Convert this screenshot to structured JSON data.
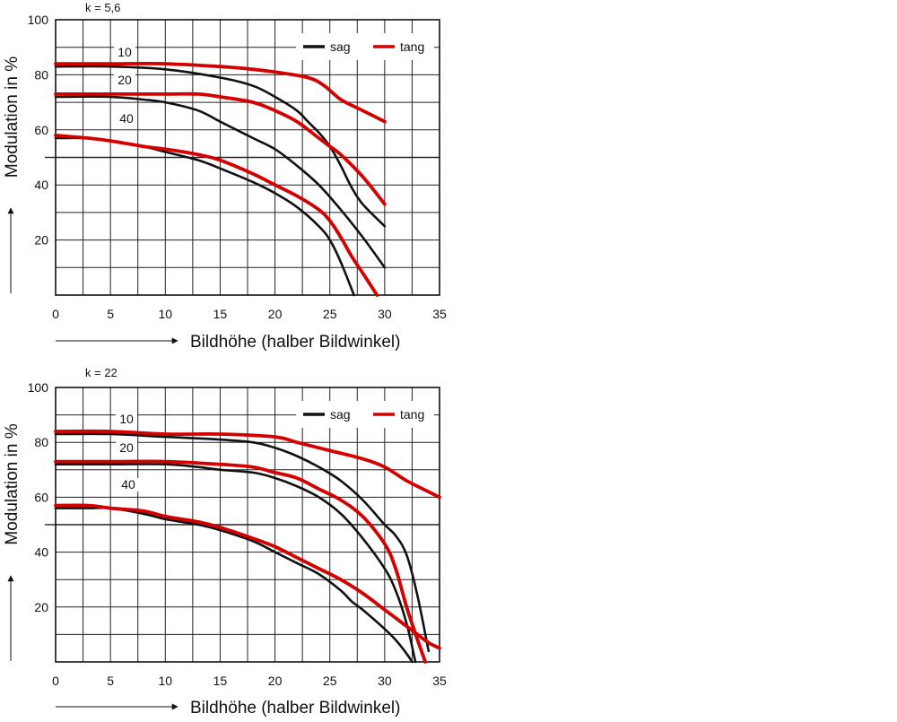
{
  "chart_data": [
    {
      "type": "line",
      "title": "k = 5,6",
      "xlabel": "Bildhöhe (halber Bildwinkel)",
      "ylabel": "Modulation in %",
      "xlim": [
        0,
        35
      ],
      "ylim": [
        0,
        100
      ],
      "x_ticks": [
        0,
        5,
        10,
        15,
        20,
        25,
        30,
        35
      ],
      "y_ticks": [
        20,
        40,
        60,
        80,
        100
      ],
      "grid": true,
      "legend_position": "top-right",
      "legend": [
        {
          "label": "sag",
          "color": "#111111"
        },
        {
          "label": "tang",
          "color": "#d40000"
        }
      ],
      "curve_labels": [
        "10",
        "20",
        "40"
      ],
      "series": [
        {
          "label": "10",
          "kind": "sag",
          "color": "#111111",
          "points": [
            [
              0,
              83
            ],
            [
              5,
              83
            ],
            [
              10,
              82
            ],
            [
              15,
              79
            ],
            [
              18,
              76
            ],
            [
              20,
              72
            ],
            [
              22,
              67
            ],
            [
              23,
              63
            ],
            [
              24,
              59
            ],
            [
              25,
              54
            ],
            [
              26,
              47
            ],
            [
              27,
              39
            ],
            [
              28,
              33
            ],
            [
              30,
              25
            ]
          ]
        },
        {
          "label": "10",
          "kind": "tang",
          "color": "#d40000",
          "points": [
            [
              0,
              84
            ],
            [
              5,
              84
            ],
            [
              10,
              84
            ],
            [
              15,
              83
            ],
            [
              18,
              82
            ],
            [
              20,
              81
            ],
            [
              23,
              79
            ],
            [
              24.5,
              76
            ],
            [
              26,
              71
            ],
            [
              28,
              67
            ],
            [
              30,
              63
            ]
          ]
        },
        {
          "label": "20",
          "kind": "sag",
          "color": "#111111",
          "points": [
            [
              0,
              72
            ],
            [
              5,
              72
            ],
            [
              8,
              71
            ],
            [
              10,
              70
            ],
            [
              13,
              67
            ],
            [
              15,
              63
            ],
            [
              18,
              57
            ],
            [
              20,
              53
            ],
            [
              22,
              47
            ],
            [
              24,
              40
            ],
            [
              26,
              31
            ],
            [
              28,
              21
            ],
            [
              30,
              10
            ]
          ]
        },
        {
          "label": "20",
          "kind": "tang",
          "color": "#d40000",
          "points": [
            [
              0,
              73
            ],
            [
              5,
              73
            ],
            [
              10,
              73
            ],
            [
              13,
              73
            ],
            [
              15,
              72
            ],
            [
              18,
              70
            ],
            [
              20,
              67
            ],
            [
              22,
              63
            ],
            [
              24,
              57
            ],
            [
              25,
              54
            ],
            [
              26,
              51
            ],
            [
              28,
              43
            ],
            [
              30,
              33
            ]
          ]
        },
        {
          "label": "40",
          "kind": "sag",
          "color": "#111111",
          "points": [
            [
              0,
              57
            ],
            [
              3,
              57
            ],
            [
              5,
              56
            ],
            [
              8,
              54
            ],
            [
              10,
              52
            ],
            [
              13,
              49
            ],
            [
              15,
              46
            ],
            [
              18,
              41
            ],
            [
              20,
              37
            ],
            [
              22,
              32
            ],
            [
              24,
              25
            ],
            [
              25,
              20
            ],
            [
              26,
              12
            ],
            [
              27.2,
              0
            ]
          ]
        },
        {
          "label": "40",
          "kind": "tang",
          "color": "#d40000",
          "points": [
            [
              0,
              58
            ],
            [
              3,
              57
            ],
            [
              5,
              56
            ],
            [
              8,
              54
            ],
            [
              10,
              53
            ],
            [
              13,
              51
            ],
            [
              15,
              49
            ],
            [
              18,
              44
            ],
            [
              20,
              40
            ],
            [
              22,
              36
            ],
            [
              24,
              31
            ],
            [
              25,
              27
            ],
            [
              26,
              21
            ],
            [
              27,
              14
            ],
            [
              28,
              8
            ],
            [
              29.3,
              0
            ]
          ]
        }
      ]
    },
    {
      "type": "line",
      "title": "k = 22",
      "xlabel": "Bildhöhe (halber Bildwinkel)",
      "ylabel": "Modulation in %",
      "xlim": [
        0,
        35
      ],
      "ylim": [
        0,
        100
      ],
      "x_ticks": [
        0,
        5,
        10,
        15,
        20,
        25,
        30,
        35
      ],
      "y_ticks": [
        20,
        40,
        60,
        80,
        100
      ],
      "grid": true,
      "legend_position": "top-right",
      "legend": [
        {
          "label": "sag",
          "color": "#111111"
        },
        {
          "label": "tang",
          "color": "#d40000"
        }
      ],
      "curve_labels": [
        "10",
        "20",
        "40"
      ],
      "series": [
        {
          "label": "10",
          "kind": "sag",
          "color": "#111111",
          "points": [
            [
              0,
              83
            ],
            [
              5,
              83
            ],
            [
              10,
              82
            ],
            [
              15,
              81
            ],
            [
              18,
              80
            ],
            [
              20,
              78
            ],
            [
              22,
              75
            ],
            [
              24,
              71
            ],
            [
              26,
              66
            ],
            [
              28,
              59
            ],
            [
              30,
              50
            ],
            [
              31,
              46
            ],
            [
              32,
              39
            ],
            [
              33,
              24
            ],
            [
              34,
              4
            ]
          ]
        },
        {
          "label": "10",
          "kind": "tang",
          "color": "#d40000",
          "points": [
            [
              0,
              84
            ],
            [
              5,
              84
            ],
            [
              10,
              83
            ],
            [
              15,
              83
            ],
            [
              20,
              82
            ],
            [
              22,
              80
            ],
            [
              25,
              77
            ],
            [
              28,
              74
            ],
            [
              30,
              71
            ],
            [
              32,
              66
            ],
            [
              34,
              62
            ],
            [
              35,
              60
            ]
          ]
        },
        {
          "label": "20",
          "kind": "sag",
          "color": "#111111",
          "points": [
            [
              0,
              72
            ],
            [
              5,
              72
            ],
            [
              10,
              72
            ],
            [
              13,
              71
            ],
            [
              15,
              70
            ],
            [
              18,
              69
            ],
            [
              20,
              67
            ],
            [
              22,
              64
            ],
            [
              24,
              60
            ],
            [
              26,
              54
            ],
            [
              28,
              45
            ],
            [
              30,
              34
            ],
            [
              31,
              26
            ],
            [
              32,
              14
            ],
            [
              32.8,
              0
            ]
          ]
        },
        {
          "label": "20",
          "kind": "tang",
          "color": "#d40000",
          "points": [
            [
              0,
              73
            ],
            [
              5,
              73
            ],
            [
              10,
              73
            ],
            [
              15,
              72
            ],
            [
              18,
              71
            ],
            [
              20,
              69
            ],
            [
              22,
              67
            ],
            [
              24,
              63
            ],
            [
              26,
              59
            ],
            [
              28,
              53
            ],
            [
              30,
              43
            ],
            [
              31,
              34
            ],
            [
              32,
              20
            ],
            [
              33,
              8
            ],
            [
              33.7,
              0
            ]
          ]
        },
        {
          "label": "40",
          "kind": "sag",
          "color": "#111111",
          "points": [
            [
              0,
              56
            ],
            [
              3,
              56
            ],
            [
              5,
              56
            ],
            [
              8,
              54
            ],
            [
              10,
              52
            ],
            [
              13,
              50
            ],
            [
              15,
              48
            ],
            [
              18,
              44
            ],
            [
              20,
              40
            ],
            [
              22,
              36
            ],
            [
              24,
              32
            ],
            [
              26,
              26
            ],
            [
              27,
              22
            ],
            [
              28,
              19
            ],
            [
              30,
              12
            ],
            [
              31,
              8
            ],
            [
              32,
              3
            ],
            [
              32.5,
              0
            ]
          ]
        },
        {
          "label": "40",
          "kind": "tang",
          "color": "#d40000",
          "points": [
            [
              0,
              57
            ],
            [
              3,
              57
            ],
            [
              5,
              56
            ],
            [
              8,
              55
            ],
            [
              10,
              53
            ],
            [
              13,
              51
            ],
            [
              15,
              49
            ],
            [
              18,
              45
            ],
            [
              20,
              42
            ],
            [
              22,
              38
            ],
            [
              24,
              34
            ],
            [
              26,
              30
            ],
            [
              28,
              25
            ],
            [
              30,
              19
            ],
            [
              31,
              16
            ],
            [
              32,
              13
            ],
            [
              33,
              10
            ],
            [
              34,
              7
            ],
            [
              35,
              5
            ]
          ]
        }
      ]
    }
  ]
}
